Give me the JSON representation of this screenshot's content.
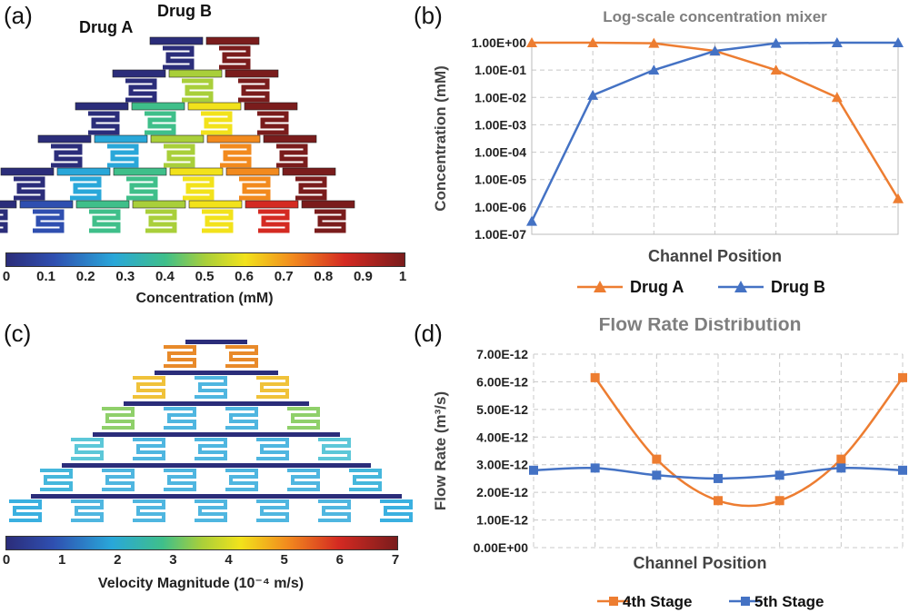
{
  "panels": {
    "a": {
      "label": "(a)",
      "drug_a_label": "Drug A",
      "drug_b_label": "Drug B",
      "colorbar": {
        "title": "Concentration (mM)",
        "ticks": [
          "0",
          "0.1",
          "0.2",
          "0.3",
          "0.4",
          "0.5",
          "0.6",
          "0.7",
          "0.8",
          "0.9",
          "1"
        ]
      }
    },
    "b": {
      "label": "(b)"
    },
    "c": {
      "label": "(c)",
      "colorbar": {
        "title": "Velocity Magnitude (10⁻⁴ m/s)",
        "ticks": [
          "0",
          "1",
          "2",
          "3",
          "4",
          "5",
          "6",
          "7"
        ]
      }
    },
    "d": {
      "label": "(d)"
    }
  },
  "colors": {
    "orange": "#ED7D31",
    "blue": "#4472C4",
    "grid": "#c8c8c8"
  },
  "chart_data": [
    {
      "id": "b",
      "type": "line",
      "title": "Log-scale concentration mixer",
      "xlabel": "Channel Position",
      "ylabel": "Concentration (mM)",
      "yscale": "log",
      "ylim": [
        1e-07,
        1
      ],
      "ytick_labels": [
        "1.00E+00",
        "1.00E-01",
        "1.00E-02",
        "1.00E-03",
        "1.00E-04",
        "1.00E-05",
        "1.00E-06",
        "1.00E-07"
      ],
      "x": [
        1,
        2,
        3,
        4,
        5,
        6,
        7
      ],
      "grid": true,
      "legend": "bottom",
      "series": [
        {
          "name": "Drug A",
          "marker": "triangle",
          "color": "#ED7D31",
          "values": [
            1,
            1,
            0.95,
            0.5,
            0.1,
            0.01,
            2e-06
          ]
        },
        {
          "name": "Drug B",
          "marker": "triangle",
          "color": "#4472C4",
          "values": [
            3e-07,
            0.012,
            0.1,
            0.5,
            0.95,
            1,
            1
          ]
        }
      ]
    },
    {
      "id": "d",
      "type": "line",
      "title": "Flow Rate Distribution",
      "xlabel": "Channel Position",
      "ylabel": "Flow Rate (m³/s)",
      "ylim": [
        0,
        7e-12
      ],
      "ytick_labels": [
        "7.00E-12",
        "6.00E-12",
        "5.00E-12",
        "4.00E-12",
        "3.00E-12",
        "2.00E-12",
        "1.00E-12",
        "0.00E+00"
      ],
      "grid": true,
      "legend": "bottom",
      "series": [
        {
          "name": "4th Stage",
          "marker": "square",
          "color": "#ED7D31",
          "x": [
            2,
            3,
            4,
            5,
            6,
            7
          ],
          "values": [
            6.15e-12,
            3.2e-12,
            1.7e-12,
            1.7e-12,
            3.2e-12,
            6.15e-12
          ]
        },
        {
          "name": "5th Stage",
          "marker": "square",
          "color": "#4472C4",
          "x": [
            1,
            2,
            3,
            4,
            5,
            6,
            7
          ],
          "values": [
            2.8e-12,
            2.88e-12,
            2.62e-12,
            2.5e-12,
            2.62e-12,
            2.88e-12,
            2.8e-12
          ]
        }
      ]
    }
  ]
}
